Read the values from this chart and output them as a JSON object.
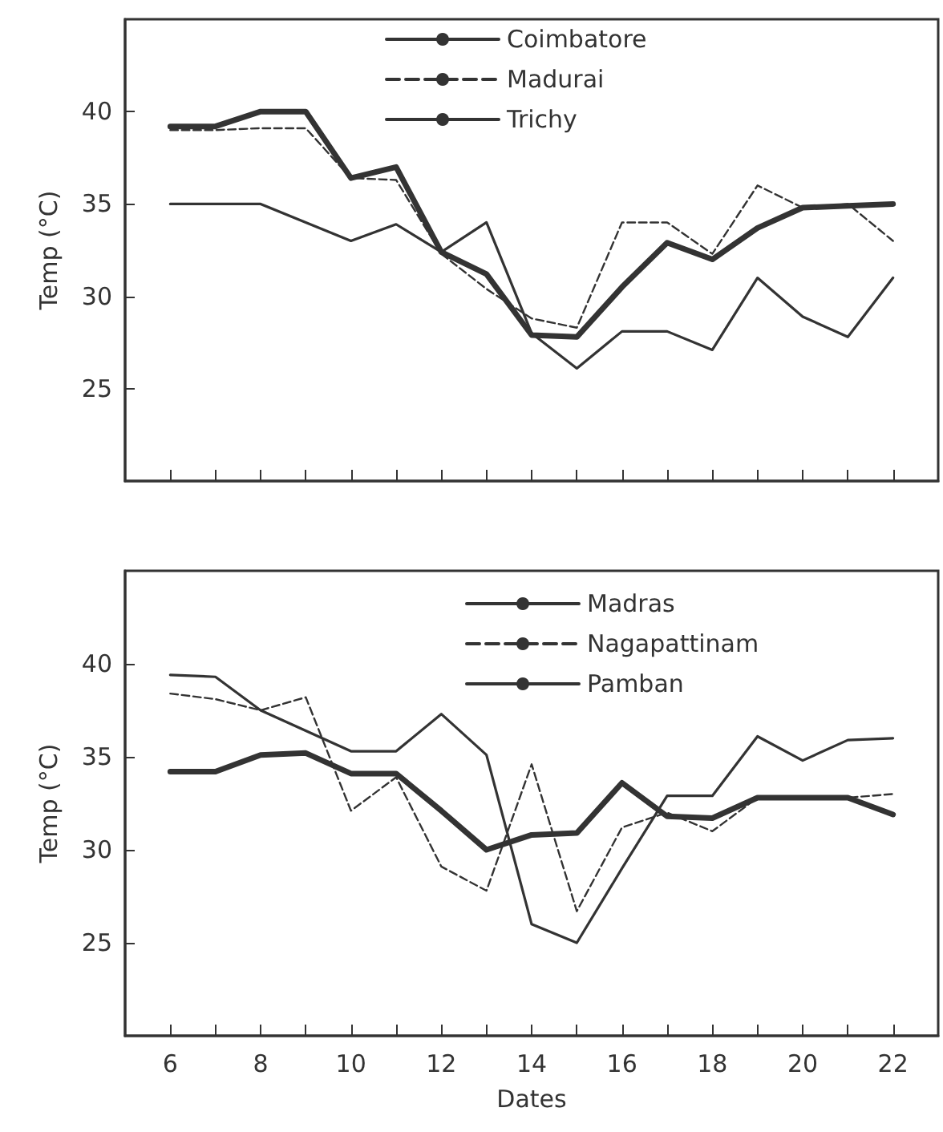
{
  "chart_data": [
    {
      "type": "line",
      "ylabel": "Temp (°C)",
      "x": [
        6,
        7,
        8,
        9,
        10,
        11,
        12,
        13,
        14,
        15,
        16,
        17,
        18,
        19,
        20,
        21,
        22
      ],
      "xlim": [
        5,
        23
      ],
      "xticks": [
        {
          "value": 6,
          "label": null
        },
        {
          "value": 7,
          "label": null
        },
        {
          "value": 8,
          "label": null
        },
        {
          "value": 9,
          "label": null
        },
        {
          "value": 10,
          "label": null
        },
        {
          "value": 11,
          "label": null
        },
        {
          "value": 12,
          "label": null
        },
        {
          "value": 13,
          "label": null
        },
        {
          "value": 14,
          "label": null
        },
        {
          "value": 15,
          "label": null
        },
        {
          "value": 16,
          "label": null
        },
        {
          "value": 17,
          "label": null
        },
        {
          "value": 18,
          "label": null
        },
        {
          "value": 19,
          "label": null
        },
        {
          "value": 20,
          "label": null
        },
        {
          "value": 21,
          "label": null
        },
        {
          "value": 22,
          "label": null
        }
      ],
      "ylim": [
        20,
        45
      ],
      "yticks": [
        25,
        30,
        35,
        40
      ],
      "tick_labels": "y",
      "grid": false,
      "legend": "top right",
      "marker": "none",
      "series": [
        {
          "name": "Coimbatore",
          "color": "#333333",
          "line_style": "solid",
          "values": [
            35,
            35,
            35,
            34,
            33,
            33.9,
            32.4,
            34,
            28,
            26.1,
            28.1,
            28.1,
            27.1,
            31,
            28.9,
            27.8,
            31
          ]
        },
        {
          "name": "Madurai",
          "color": "#333333",
          "line_style": "dashed",
          "values": [
            39,
            39,
            39.1,
            39.1,
            36.4,
            36.3,
            32.3,
            30.4,
            28.8,
            28.3,
            34,
            34,
            32.3,
            36,
            34.8,
            35,
            33
          ]
        },
        {
          "name": "Trichy",
          "color": "#333333",
          "line_style": "solid",
          "values": [
            39.2,
            39.2,
            40,
            40,
            36.4,
            37,
            32.4,
            31.2,
            27.9,
            27.8,
            30.5,
            32.9,
            32,
            33.7,
            34.8,
            34.9,
            35
          ]
        }
      ]
    },
    {
      "type": "line",
      "ylabel": "Temp (°C)",
      "xlabel": "Dates",
      "x": [
        6,
        7,
        8,
        9,
        10,
        11,
        12,
        13,
        14,
        15,
        16,
        17,
        18,
        19,
        20,
        21,
        22
      ],
      "xlim": [
        5,
        23
      ],
      "xticks": [
        6,
        {
          "value": 7,
          "label": null
        },
        8,
        {
          "value": 9,
          "label": null
        },
        10,
        {
          "value": 11,
          "label": null
        },
        12,
        {
          "value": 13,
          "label": null
        },
        14,
        {
          "value": 15,
          "label": null
        },
        16,
        {
          "value": 17,
          "label": null
        },
        18,
        {
          "value": 19,
          "label": null
        },
        20,
        {
          "value": 21,
          "label": null
        },
        22
      ],
      "ylim": [
        20,
        45
      ],
      "yticks": [
        25,
        30,
        35,
        40
      ],
      "grid": false,
      "legend": "top right",
      "marker": "none",
      "series": [
        {
          "name": "Madras",
          "color": "#333333",
          "line_style": "solid",
          "values": [
            39.4,
            39.3,
            37.5,
            36.4,
            35.3,
            35.3,
            37.3,
            35.1,
            26,
            25,
            29,
            32.9,
            32.9,
            36.1,
            34.8,
            35.9,
            36
          ]
        },
        {
          "name": "Nagapattinam",
          "color": "#333333",
          "line_style": "dashed",
          "values": [
            38.4,
            38.1,
            37.5,
            38.2,
            32.1,
            33.9,
            29.1,
            27.8,
            34.6,
            26.7,
            31.2,
            32,
            31,
            32.8,
            32.8,
            32.8,
            33
          ]
        },
        {
          "name": "Pamban",
          "color": "#333333",
          "line_style": "solid",
          "values": [
            34.2,
            34.2,
            35.1,
            35.2,
            34.1,
            34.1,
            32.1,
            30,
            30.8,
            30.9,
            33.6,
            31.8,
            31.7,
            32.8,
            32.8,
            32.8,
            31.9
          ]
        }
      ]
    }
  ]
}
